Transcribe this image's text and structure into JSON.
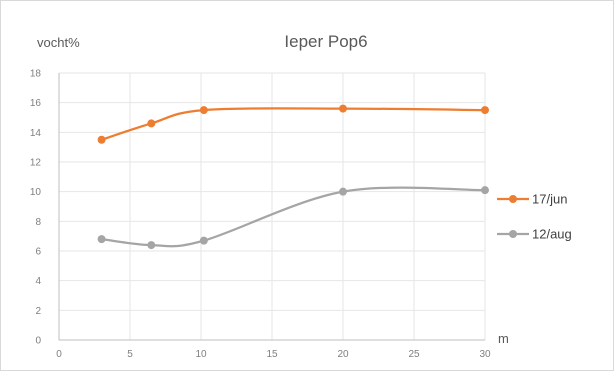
{
  "chart_data": {
    "type": "line",
    "title": "Ieper Pop6",
    "ylabel": "vocht%",
    "xlabel": "m",
    "xlim": [
      0,
      30
    ],
    "ylim": [
      0,
      18
    ],
    "x_ticks": [
      0,
      5,
      10,
      15,
      20,
      25,
      30
    ],
    "y_ticks": [
      0,
      2,
      4,
      6,
      8,
      10,
      12,
      14,
      16,
      18
    ],
    "grid": "vertical and horizontal",
    "smoothed": true,
    "legend_position": "right",
    "series": [
      {
        "name": "17/jun",
        "color": "#ed7d31",
        "points": [
          [
            3,
            13.5
          ],
          [
            6.5,
            14.6
          ],
          [
            10.2,
            15.5
          ],
          [
            20,
            15.6
          ],
          [
            30,
            15.5
          ]
        ]
      },
      {
        "name": "12/aug",
        "color": "#a5a5a5",
        "points": [
          [
            3,
            6.8
          ],
          [
            6.5,
            6.4
          ],
          [
            10.2,
            6.7
          ],
          [
            20,
            10.0
          ],
          [
            30,
            10.1
          ]
        ]
      }
    ]
  }
}
